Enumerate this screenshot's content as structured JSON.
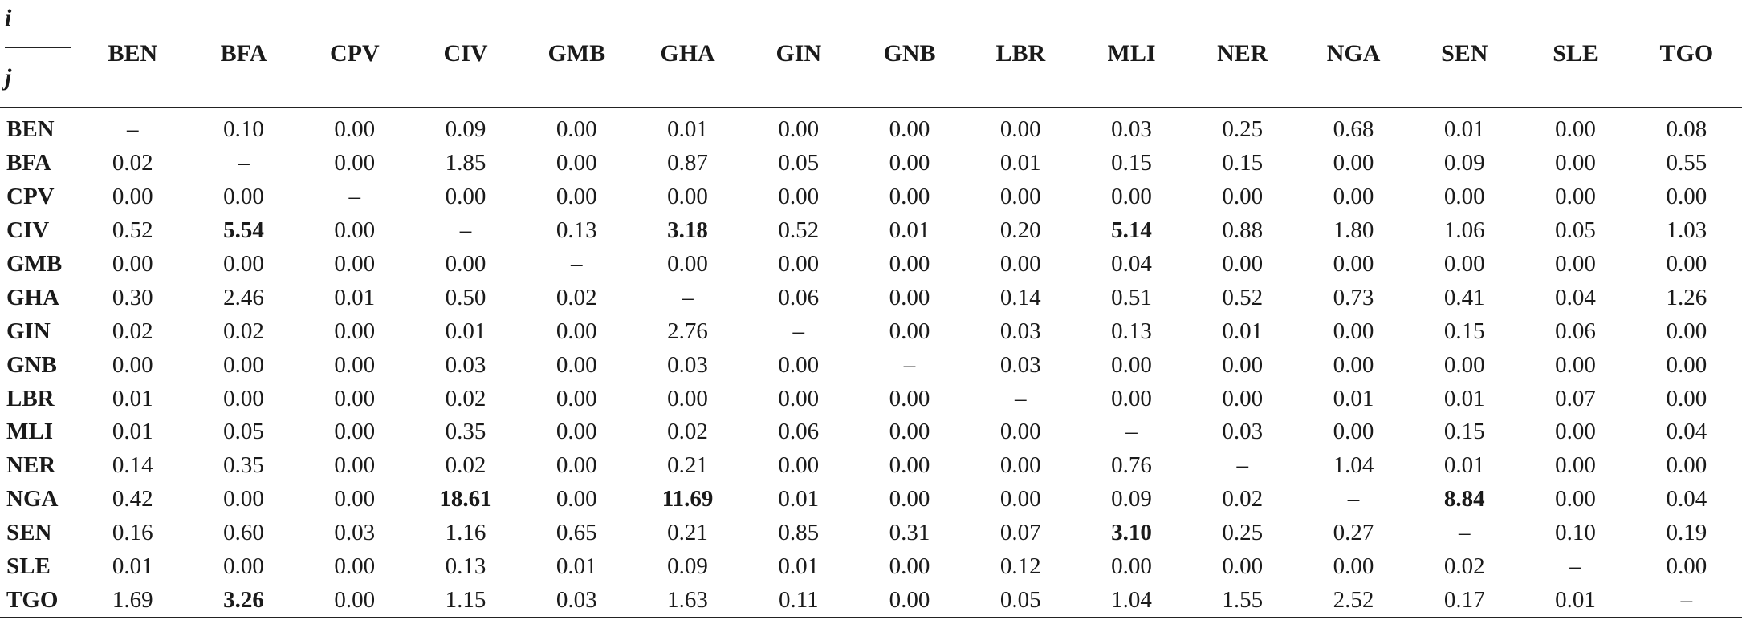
{
  "table": {
    "corner": {
      "top": "i",
      "bottom": "j"
    },
    "columns": [
      "BEN",
      "BFA",
      "CPV",
      "CIV",
      "GMB",
      "GHA",
      "GIN",
      "GNB",
      "LBR",
      "MLI",
      "NER",
      "NGA",
      "SEN",
      "SLE",
      "TGO"
    ],
    "rows": [
      {
        "label": "BEN",
        "cells": [
          {
            "v": "–"
          },
          {
            "v": "0.10"
          },
          {
            "v": "0.00"
          },
          {
            "v": "0.09"
          },
          {
            "v": "0.00"
          },
          {
            "v": "0.01"
          },
          {
            "v": "0.00"
          },
          {
            "v": "0.00"
          },
          {
            "v": "0.00"
          },
          {
            "v": "0.03"
          },
          {
            "v": "0.25"
          },
          {
            "v": "0.68"
          },
          {
            "v": "0.01"
          },
          {
            "v": "0.00"
          },
          {
            "v": "0.08"
          }
        ]
      },
      {
        "label": "BFA",
        "cells": [
          {
            "v": "0.02"
          },
          {
            "v": "–"
          },
          {
            "v": "0.00"
          },
          {
            "v": "1.85"
          },
          {
            "v": "0.00"
          },
          {
            "v": "0.87"
          },
          {
            "v": "0.05"
          },
          {
            "v": "0.00"
          },
          {
            "v": "0.01"
          },
          {
            "v": "0.15"
          },
          {
            "v": "0.15"
          },
          {
            "v": "0.00"
          },
          {
            "v": "0.09"
          },
          {
            "v": "0.00"
          },
          {
            "v": "0.55"
          }
        ]
      },
      {
        "label": "CPV",
        "cells": [
          {
            "v": "0.00"
          },
          {
            "v": "0.00"
          },
          {
            "v": "–"
          },
          {
            "v": "0.00"
          },
          {
            "v": "0.00"
          },
          {
            "v": "0.00"
          },
          {
            "v": "0.00"
          },
          {
            "v": "0.00"
          },
          {
            "v": "0.00"
          },
          {
            "v": "0.00"
          },
          {
            "v": "0.00"
          },
          {
            "v": "0.00"
          },
          {
            "v": "0.00"
          },
          {
            "v": "0.00"
          },
          {
            "v": "0.00"
          }
        ]
      },
      {
        "label": "CIV",
        "cells": [
          {
            "v": "0.52"
          },
          {
            "v": "5.54",
            "b": true
          },
          {
            "v": "0.00"
          },
          {
            "v": "–"
          },
          {
            "v": "0.13"
          },
          {
            "v": "3.18",
            "b": true
          },
          {
            "v": "0.52"
          },
          {
            "v": "0.01"
          },
          {
            "v": "0.20"
          },
          {
            "v": "5.14",
            "b": true
          },
          {
            "v": "0.88"
          },
          {
            "v": "1.80"
          },
          {
            "v": "1.06"
          },
          {
            "v": "0.05"
          },
          {
            "v": "1.03"
          }
        ]
      },
      {
        "label": "GMB",
        "cells": [
          {
            "v": "0.00"
          },
          {
            "v": "0.00"
          },
          {
            "v": "0.00"
          },
          {
            "v": "0.00"
          },
          {
            "v": "–"
          },
          {
            "v": "0.00"
          },
          {
            "v": "0.00"
          },
          {
            "v": "0.00"
          },
          {
            "v": "0.00"
          },
          {
            "v": "0.04"
          },
          {
            "v": "0.00"
          },
          {
            "v": "0.00"
          },
          {
            "v": "0.00"
          },
          {
            "v": "0.00"
          },
          {
            "v": "0.00"
          }
        ]
      },
      {
        "label": "GHA",
        "cells": [
          {
            "v": "0.30"
          },
          {
            "v": "2.46"
          },
          {
            "v": "0.01"
          },
          {
            "v": "0.50"
          },
          {
            "v": "0.02"
          },
          {
            "v": "–"
          },
          {
            "v": "0.06"
          },
          {
            "v": "0.00"
          },
          {
            "v": "0.14"
          },
          {
            "v": "0.51"
          },
          {
            "v": "0.52"
          },
          {
            "v": "0.73"
          },
          {
            "v": "0.41"
          },
          {
            "v": "0.04"
          },
          {
            "v": "1.26"
          }
        ]
      },
      {
        "label": "GIN",
        "cells": [
          {
            "v": "0.02"
          },
          {
            "v": "0.02"
          },
          {
            "v": "0.00"
          },
          {
            "v": "0.01"
          },
          {
            "v": "0.00"
          },
          {
            "v": "2.76"
          },
          {
            "v": "–"
          },
          {
            "v": "0.00"
          },
          {
            "v": "0.03"
          },
          {
            "v": "0.13"
          },
          {
            "v": "0.01"
          },
          {
            "v": "0.00"
          },
          {
            "v": "0.15"
          },
          {
            "v": "0.06"
          },
          {
            "v": "0.00"
          }
        ]
      },
      {
        "label": "GNB",
        "cells": [
          {
            "v": "0.00"
          },
          {
            "v": "0.00"
          },
          {
            "v": "0.00"
          },
          {
            "v": "0.03"
          },
          {
            "v": "0.00"
          },
          {
            "v": "0.03"
          },
          {
            "v": "0.00"
          },
          {
            "v": "–"
          },
          {
            "v": "0.03"
          },
          {
            "v": "0.00"
          },
          {
            "v": "0.00"
          },
          {
            "v": "0.00"
          },
          {
            "v": "0.00"
          },
          {
            "v": "0.00"
          },
          {
            "v": "0.00"
          }
        ]
      },
      {
        "label": "LBR",
        "cells": [
          {
            "v": "0.01"
          },
          {
            "v": "0.00"
          },
          {
            "v": "0.00"
          },
          {
            "v": "0.02"
          },
          {
            "v": "0.00"
          },
          {
            "v": "0.00"
          },
          {
            "v": "0.00"
          },
          {
            "v": "0.00"
          },
          {
            "v": "–"
          },
          {
            "v": "0.00"
          },
          {
            "v": "0.00"
          },
          {
            "v": "0.01"
          },
          {
            "v": "0.01"
          },
          {
            "v": "0.07"
          },
          {
            "v": "0.00"
          }
        ]
      },
      {
        "label": "MLI",
        "cells": [
          {
            "v": "0.01"
          },
          {
            "v": "0.05"
          },
          {
            "v": "0.00"
          },
          {
            "v": "0.35"
          },
          {
            "v": "0.00"
          },
          {
            "v": "0.02"
          },
          {
            "v": "0.06"
          },
          {
            "v": "0.00"
          },
          {
            "v": "0.00"
          },
          {
            "v": "–"
          },
          {
            "v": "0.03"
          },
          {
            "v": "0.00"
          },
          {
            "v": "0.15"
          },
          {
            "v": "0.00"
          },
          {
            "v": "0.04"
          }
        ]
      },
      {
        "label": "NER",
        "cells": [
          {
            "v": "0.14"
          },
          {
            "v": "0.35"
          },
          {
            "v": "0.00"
          },
          {
            "v": "0.02"
          },
          {
            "v": "0.00"
          },
          {
            "v": "0.21"
          },
          {
            "v": "0.00"
          },
          {
            "v": "0.00"
          },
          {
            "v": "0.00"
          },
          {
            "v": "0.76"
          },
          {
            "v": "–"
          },
          {
            "v": "1.04"
          },
          {
            "v": "0.01"
          },
          {
            "v": "0.00"
          },
          {
            "v": "0.00"
          }
        ]
      },
      {
        "label": "NGA",
        "cells": [
          {
            "v": "0.42"
          },
          {
            "v": "0.00"
          },
          {
            "v": "0.00"
          },
          {
            "v": "18.61",
            "b": true
          },
          {
            "v": "0.00"
          },
          {
            "v": "11.69",
            "b": true
          },
          {
            "v": "0.01"
          },
          {
            "v": "0.00"
          },
          {
            "v": "0.00"
          },
          {
            "v": "0.09"
          },
          {
            "v": "0.02"
          },
          {
            "v": "–"
          },
          {
            "v": "8.84",
            "b": true
          },
          {
            "v": "0.00"
          },
          {
            "v": "0.04"
          }
        ]
      },
      {
        "label": "SEN",
        "cells": [
          {
            "v": "0.16"
          },
          {
            "v": "0.60"
          },
          {
            "v": "0.03"
          },
          {
            "v": "1.16"
          },
          {
            "v": "0.65"
          },
          {
            "v": "0.21"
          },
          {
            "v": "0.85"
          },
          {
            "v": "0.31"
          },
          {
            "v": "0.07"
          },
          {
            "v": "3.10",
            "b": true
          },
          {
            "v": "0.25"
          },
          {
            "v": "0.27"
          },
          {
            "v": "–"
          },
          {
            "v": "0.10"
          },
          {
            "v": "0.19"
          }
        ]
      },
      {
        "label": "SLE",
        "cells": [
          {
            "v": "0.01"
          },
          {
            "v": "0.00"
          },
          {
            "v": "0.00"
          },
          {
            "v": "0.13"
          },
          {
            "v": "0.01"
          },
          {
            "v": "0.09"
          },
          {
            "v": "0.01"
          },
          {
            "v": "0.00"
          },
          {
            "v": "0.12"
          },
          {
            "v": "0.00"
          },
          {
            "v": "0.00"
          },
          {
            "v": "0.00"
          },
          {
            "v": "0.02"
          },
          {
            "v": "–"
          },
          {
            "v": "0.00"
          }
        ]
      },
      {
        "label": "TGO",
        "cells": [
          {
            "v": "1.69"
          },
          {
            "v": "3.26",
            "b": true
          },
          {
            "v": "0.00"
          },
          {
            "v": "1.15"
          },
          {
            "v": "0.03"
          },
          {
            "v": "1.63"
          },
          {
            "v": "0.11"
          },
          {
            "v": "0.00"
          },
          {
            "v": "0.05"
          },
          {
            "v": "1.04"
          },
          {
            "v": "1.55"
          },
          {
            "v": "2.52"
          },
          {
            "v": "0.17"
          },
          {
            "v": "0.01"
          },
          {
            "v": "–"
          }
        ]
      }
    ]
  }
}
